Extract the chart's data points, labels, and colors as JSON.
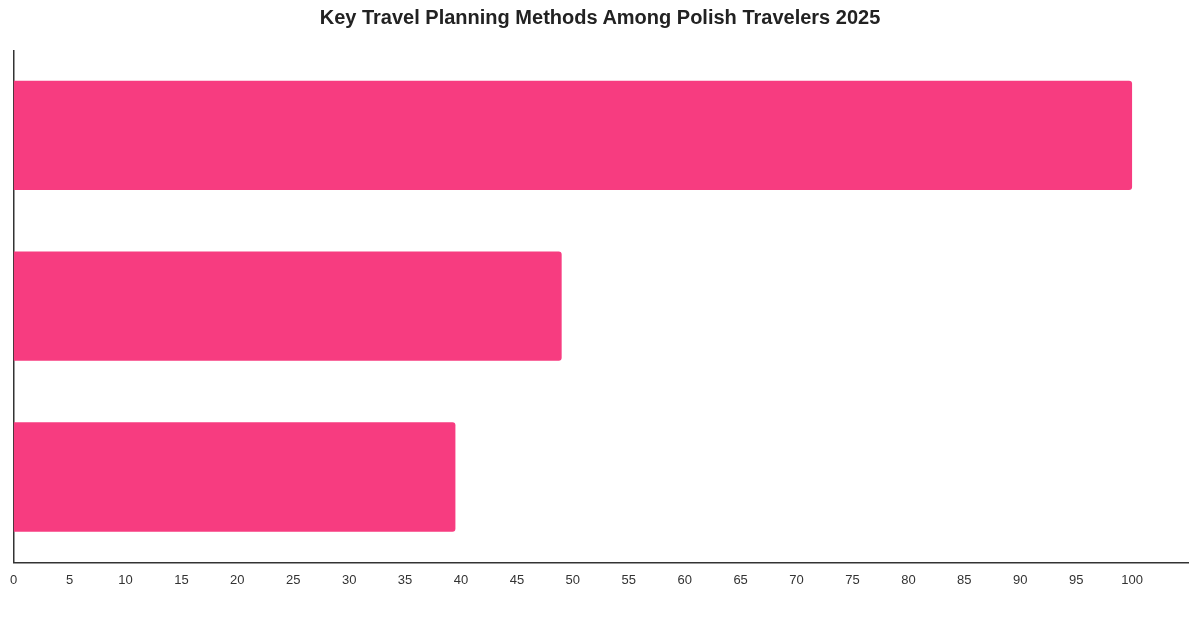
{
  "chart_data": {
    "type": "bar",
    "orientation": "horizontal",
    "title": "Key Travel Planning Methods Among Polish Travelers 2025",
    "categories": [
      null,
      null,
      null
    ],
    "values": [
      100,
      49,
      39.5
    ],
    "color": "#f73c80",
    "xlim": [
      0,
      105
    ],
    "xticks": [
      0,
      5,
      10,
      15,
      20,
      25,
      30,
      35,
      40,
      45,
      50,
      55,
      60,
      65,
      70,
      75,
      80,
      85,
      90,
      95,
      100
    ],
    "grid": false,
    "legend": false
  }
}
